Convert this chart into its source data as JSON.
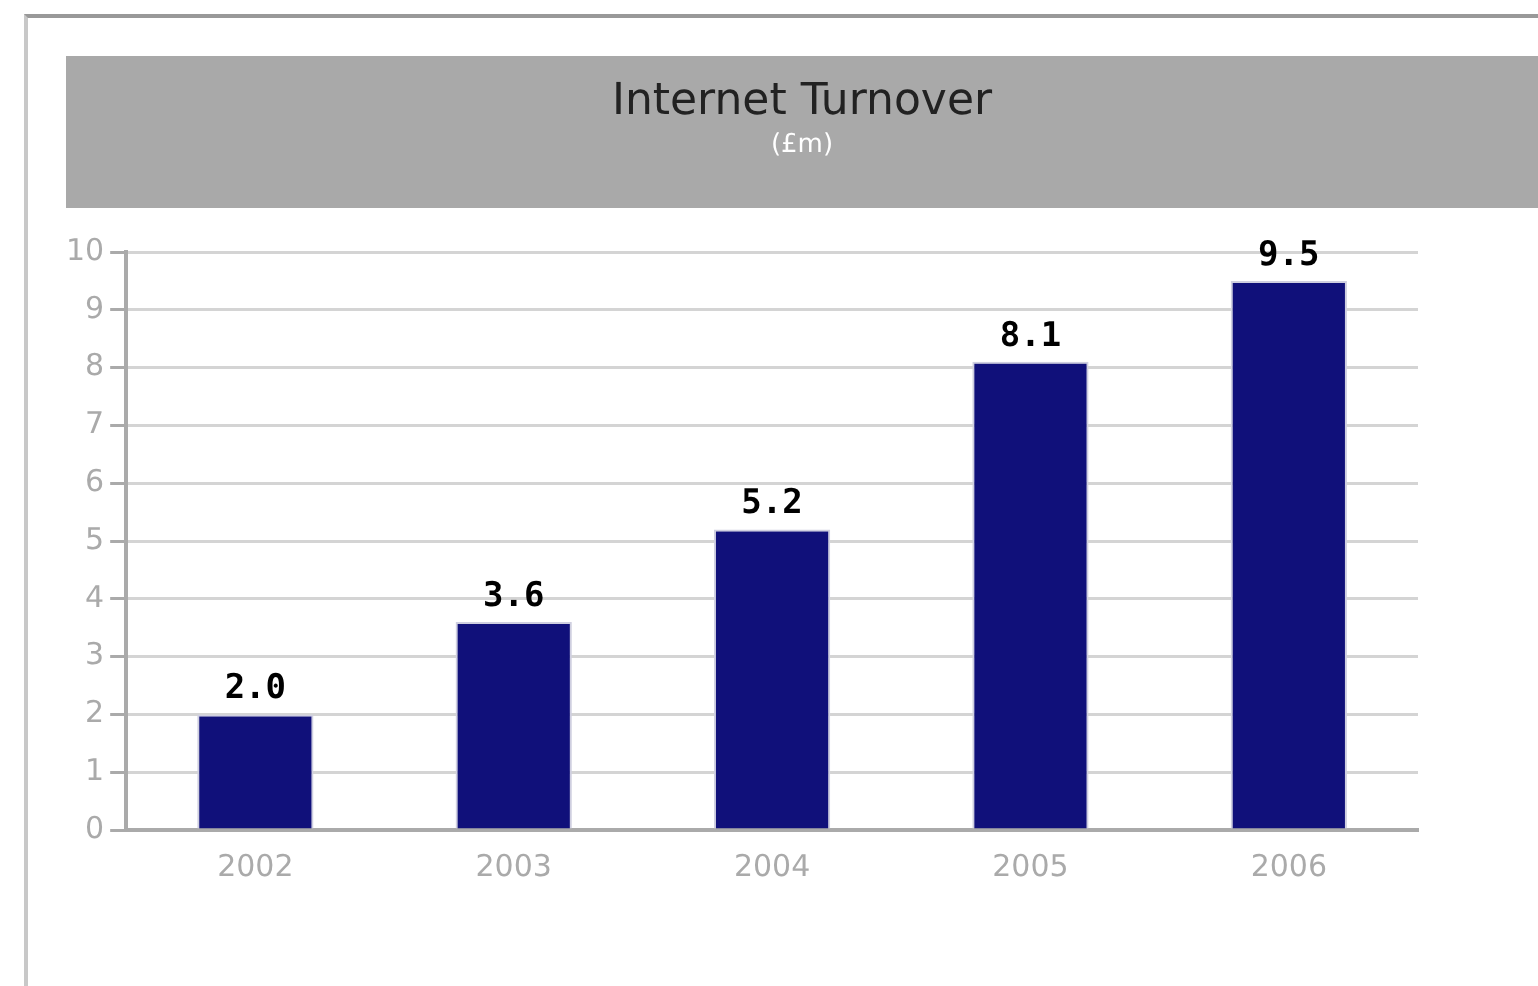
{
  "chart_data": {
    "type": "bar",
    "title": "Internet Turnover",
    "subtitle": "(£m)",
    "categories": [
      "2002",
      "2003",
      "2004",
      "2005",
      "2006"
    ],
    "values": [
      2.0,
      3.6,
      5.2,
      8.1,
      9.5
    ],
    "color": "#10107a",
    "ylim": [
      0,
      10
    ],
    "yticks": [
      0,
      1,
      2,
      3,
      4,
      5,
      6,
      7,
      8,
      9,
      10
    ],
    "grid": "y",
    "value_labels": [
      "2.0",
      "3.6",
      "5.2",
      "8.1",
      "9.5"
    ]
  }
}
